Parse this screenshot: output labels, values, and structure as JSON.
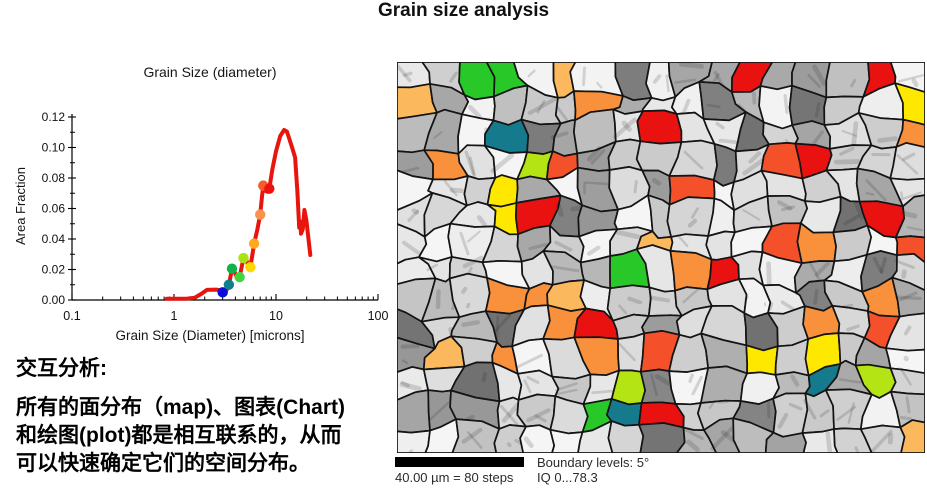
{
  "page": {
    "title": "Grain size analysis"
  },
  "chart_data": {
    "type": "line",
    "title": "Grain Size (diameter)",
    "xlabel": "Grain Size (Diameter) [microns]",
    "ylabel": "Area Fraction",
    "xscale": "log",
    "xlim": [
      0.1,
      100
    ],
    "ylim": [
      0.0,
      0.12
    ],
    "xticks": [
      0.1,
      1,
      10,
      100
    ],
    "yticks": [
      0.0,
      0.02,
      0.04,
      0.06,
      0.08,
      0.1,
      0.12
    ],
    "grid": false,
    "legend": "none",
    "line_color": "#e8140e",
    "series": [
      {
        "name": "area-fraction-distribution",
        "points": [
          [
            0.85,
            0.0008
          ],
          [
            1.35,
            0.0009
          ],
          [
            1.6,
            0.0015
          ],
          [
            1.85,
            0.004
          ],
          [
            2.1,
            0.0066
          ],
          [
            2.6,
            0.0068
          ],
          [
            2.9,
            0.0062
          ],
          [
            3.0,
            0.005
          ],
          [
            3.25,
            0.006
          ],
          [
            3.45,
            0.01
          ],
          [
            3.7,
            0.0205
          ],
          [
            3.95,
            0.018
          ],
          [
            4.15,
            0.0145
          ],
          [
            4.4,
            0.015
          ],
          [
            4.65,
            0.023
          ],
          [
            4.8,
            0.0275
          ],
          [
            5.1,
            0.0265
          ],
          [
            5.35,
            0.0225
          ],
          [
            5.6,
            0.0215
          ],
          [
            5.9,
            0.0305
          ],
          [
            6.1,
            0.037
          ],
          [
            6.55,
            0.046
          ],
          [
            7.0,
            0.056
          ],
          [
            7.3,
            0.0685
          ],
          [
            7.5,
            0.075
          ],
          [
            7.9,
            0.0715
          ],
          [
            8.25,
            0.071
          ],
          [
            8.6,
            0.073
          ],
          [
            9.2,
            0.0855
          ],
          [
            10.0,
            0.0975
          ],
          [
            11.0,
            0.1075
          ],
          [
            12.0,
            0.1115
          ],
          [
            12.8,
            0.1105
          ],
          [
            13.7,
            0.1045
          ],
          [
            14.6,
            0.0985
          ],
          [
            15.4,
            0.0935
          ],
          [
            16.2,
            0.071
          ],
          [
            16.9,
            0.0475
          ],
          [
            17.3,
            0.0515
          ],
          [
            17.6,
            0.0435
          ],
          [
            18.3,
            0.0465
          ],
          [
            19.0,
            0.059
          ],
          [
            19.8,
            0.0525
          ],
          [
            20.8,
            0.0405
          ],
          [
            21.7,
            0.0295
          ]
        ]
      }
    ],
    "markers": [
      {
        "x": 3.0,
        "y": 0.005,
        "color": "#0a0ad8",
        "name": "blue"
      },
      {
        "x": 3.45,
        "y": 0.01,
        "color": "#0f7d8c",
        "name": "teal"
      },
      {
        "x": 3.7,
        "y": 0.0205,
        "color": "#10b24c",
        "name": "green"
      },
      {
        "x": 4.4,
        "y": 0.015,
        "color": "#3fd63f",
        "name": "light-green"
      },
      {
        "x": 4.8,
        "y": 0.0275,
        "color": "#a8e410",
        "name": "yellow-green"
      },
      {
        "x": 5.6,
        "y": 0.0215,
        "color": "#ffd800",
        "name": "yellow"
      },
      {
        "x": 6.1,
        "y": 0.037,
        "color": "#ffaa1e",
        "name": "orange"
      },
      {
        "x": 7.0,
        "y": 0.056,
        "color": "#fb9350",
        "name": "light-orange"
      },
      {
        "x": 7.5,
        "y": 0.075,
        "color": "#f85a28",
        "name": "orange-red"
      },
      {
        "x": 8.6,
        "y": 0.073,
        "color": "#ee1111",
        "name": "red"
      }
    ]
  },
  "notes": {
    "heading": "交互分析:",
    "body": "所有的面分布（map)、图表(Chart)\n和绘图(plot)都是相互联系的，从而\n可以快速确定它们的空间分布。"
  },
  "map": {
    "caption": {
      "scale": "40.00 µm = 80 steps",
      "boundary": "Boundary levels: 5°",
      "iq": "IQ 0...78.3"
    },
    "boundary_color": "#141414",
    "scalebar_color": "#000000",
    "gray_levels": [
      "#f0f0f0",
      "#dadada",
      "#c2c2c2",
      "#a2a2a2",
      "#7d7d7d"
    ],
    "palette": [
      {
        "color": "#ea1111",
        "weight": 3
      },
      {
        "color": "#f4502a",
        "weight": 3
      },
      {
        "color": "#f8903c",
        "weight": 3
      },
      {
        "color": "#fcb85c",
        "weight": 2
      },
      {
        "color": "#ffe800",
        "weight": 2
      },
      {
        "color": "#b4e414",
        "weight": 1.5
      },
      {
        "color": "#28c828",
        "weight": 2
      },
      {
        "color": "#147a8c",
        "weight": 0.7
      },
      {
        "color": "#1414dc",
        "weight": 0.7
      }
    ]
  }
}
